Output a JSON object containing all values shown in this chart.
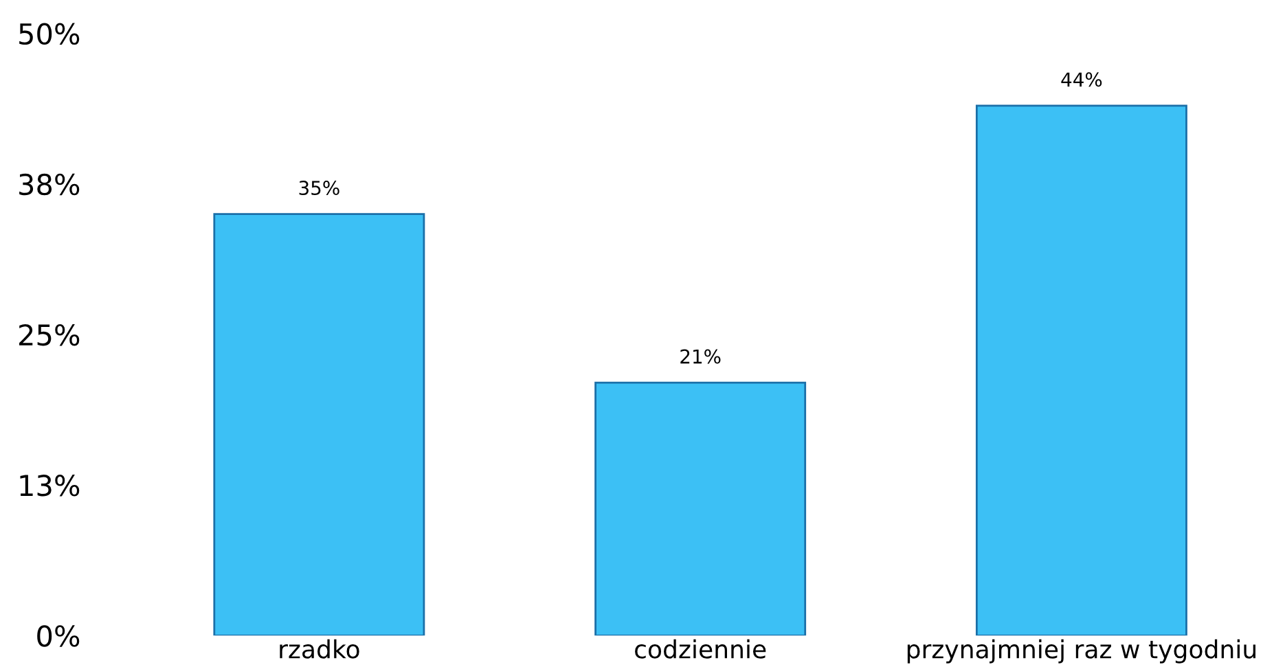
{
  "chart_data": {
    "type": "bar",
    "categories": [
      "rzadko",
      "codziennie",
      "przynajmniej raz w tygodniu"
    ],
    "values": [
      35,
      21,
      44
    ],
    "value_labels": [
      "35%",
      "21%",
      "44%"
    ],
    "color": "#3cc0f5",
    "ylim": [
      0,
      50
    ],
    "yticks": [
      {
        "value": 0,
        "label": "0%"
      },
      {
        "value": 12.5,
        "label": "13%"
      },
      {
        "value": 25,
        "label": "25%"
      },
      {
        "value": 37.5,
        "label": "38%"
      },
      {
        "value": 50,
        "label": "50%"
      }
    ],
    "grid": false
  }
}
